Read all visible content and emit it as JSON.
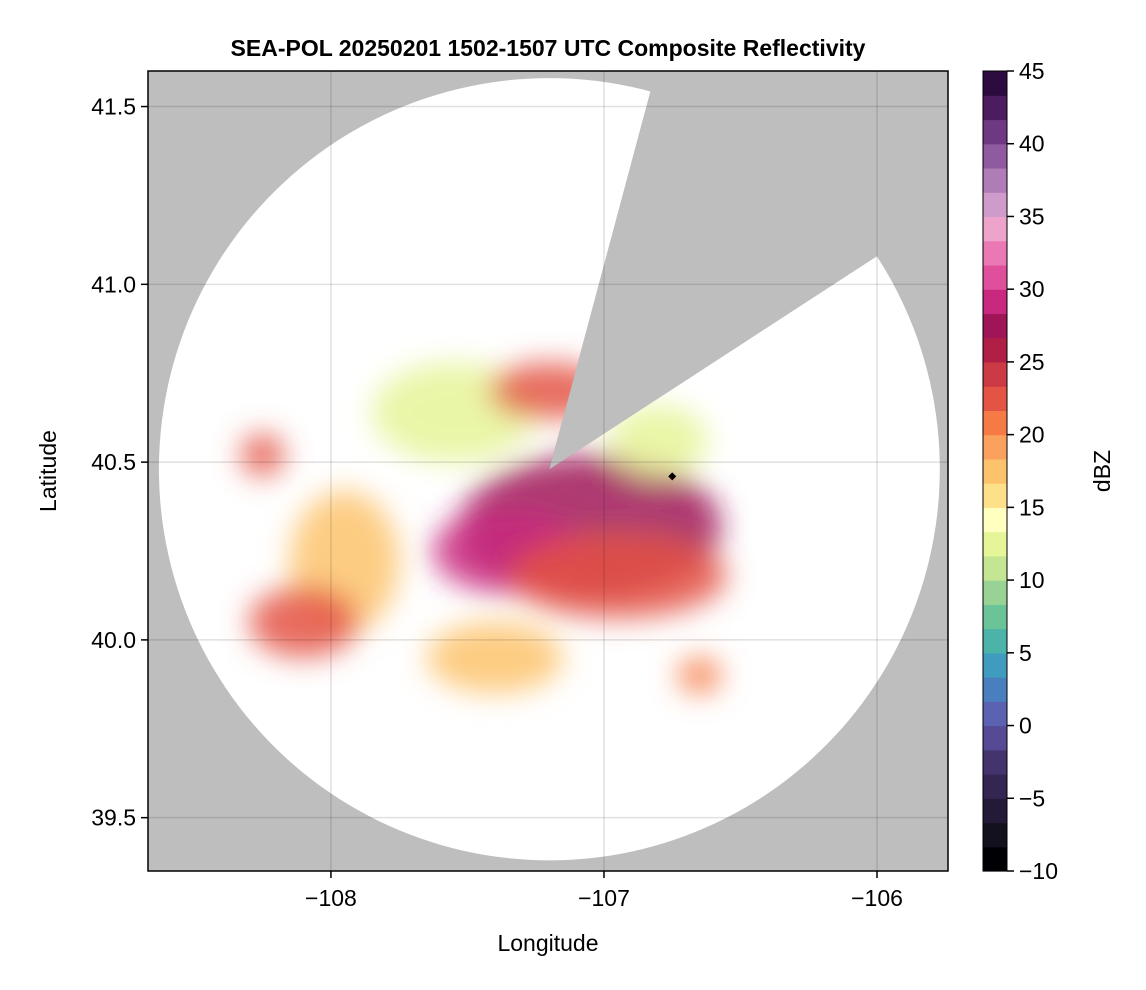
{
  "chart_data": {
    "type": "heatmap",
    "title": "SEA-POL 20250201 1502-1507 UTC Composite Reflectivity",
    "xlabel": "Longitude",
    "ylabel": "Latitude",
    "xlim": [
      -108.67,
      -105.74
    ],
    "ylim": [
      39.35,
      41.6
    ],
    "xticks": [
      -108,
      -107,
      -106
    ],
    "xtick_labels": [
      "−108",
      "−107",
      "−106"
    ],
    "yticks": [
      39.5,
      40.0,
      40.5,
      41.0,
      41.5
    ],
    "ytick_labels": [
      "39.5",
      "40.0",
      "40.5",
      "41.0",
      "41.5"
    ],
    "grid": true,
    "colorbar": {
      "label": "dBZ",
      "range": [
        -10,
        45
      ],
      "ticks": [
        -10,
        -5,
        0,
        5,
        10,
        15,
        20,
        25,
        30,
        35,
        40,
        45
      ],
      "tick_labels": [
        "−10",
        "−5",
        "0",
        "5",
        "10",
        "15",
        "20",
        "25",
        "30",
        "35",
        "40",
        "45"
      ],
      "colors": [
        "#000004",
        "#14111f",
        "#241a38",
        "#342552",
        "#45336d",
        "#554a93",
        "#5c62b2",
        "#4a7fbf",
        "#3f9cbf",
        "#4bb3a8",
        "#6ac497",
        "#98d395",
        "#c4e592",
        "#e6f598",
        "#ffffbf",
        "#fee08b",
        "#fdc36c",
        "#fba15e",
        "#f57a46",
        "#e45444",
        "#cc3a45",
        "#b01f45",
        "#a01558",
        "#c9287f",
        "#df4f9b",
        "#e978b4",
        "#eea3cb",
        "#cf9bcb",
        "#b07cb8",
        "#905aa0",
        "#6f3882",
        "#4b1c60",
        "#2c0c40"
      ]
    },
    "radar": {
      "center": [
        -107.2,
        40.48
      ],
      "range_lon_deg": 1.43,
      "range_lat_deg": 1.1,
      "blocked_azimuth_deg": [
        15,
        57
      ],
      "coverage_color": "#ffffff",
      "no_coverage_color": "#bebebe"
    },
    "marker": {
      "lon": -106.75,
      "lat": 40.46,
      "shape": "diamond",
      "color": "#000000"
    },
    "echo_regions": [
      {
        "lon": -107.05,
        "lat": 40.32,
        "rx": 0.48,
        "ry": 0.2,
        "dbz": 27
      },
      {
        "lon": -107.35,
        "lat": 40.25,
        "rx": 0.28,
        "ry": 0.12,
        "dbz": 29
      },
      {
        "lon": -106.95,
        "lat": 40.18,
        "rx": 0.4,
        "ry": 0.12,
        "dbz": 22
      },
      {
        "lon": -107.55,
        "lat": 40.64,
        "rx": 0.3,
        "ry": 0.14,
        "dbz": 12
      },
      {
        "lon": -107.2,
        "lat": 40.7,
        "rx": 0.22,
        "ry": 0.08,
        "dbz": 22
      },
      {
        "lon": -106.8,
        "lat": 40.56,
        "rx": 0.18,
        "ry": 0.1,
        "dbz": 12
      },
      {
        "lon": -107.95,
        "lat": 40.22,
        "rx": 0.2,
        "ry": 0.2,
        "dbz": 17
      },
      {
        "lon": -108.1,
        "lat": 40.05,
        "rx": 0.2,
        "ry": 0.1,
        "dbz": 22
      },
      {
        "lon": -108.25,
        "lat": 40.52,
        "rx": 0.08,
        "ry": 0.06,
        "dbz": 22
      },
      {
        "lon": -107.4,
        "lat": 39.95,
        "rx": 0.25,
        "ry": 0.1,
        "dbz": 18
      },
      {
        "lon": -106.65,
        "lat": 39.9,
        "rx": 0.08,
        "ry": 0.05,
        "dbz": 21
      }
    ]
  }
}
